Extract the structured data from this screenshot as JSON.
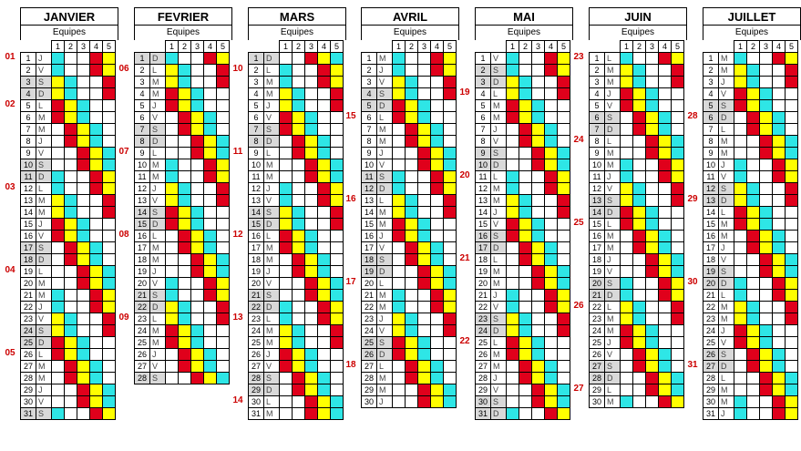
{
  "header_label": "Equipes",
  "team_numbers": [
    "1",
    "2",
    "3",
    "4",
    "5"
  ],
  "colors": {
    "cyan": "#2ee6e6",
    "yellow": "#ffff00",
    "red": "#e0001b",
    "weekend": "#d9d9d9"
  },
  "months": [
    {
      "name": "JANVIER",
      "days": "JVSDLMMJVSDLMMJVSDLMMJVSDLMMJVS",
      "start": "2J"
    },
    {
      "name": "FEVRIER",
      "days": "DLMMJVSDLMMJVSDLMMJVSDLMMJVS",
      "start": ""
    },
    {
      "name": "MARS",
      "days": "DLMMJVSDLMMJVSDLMMJVSDLMMJVSDLM",
      "start": ""
    },
    {
      "name": "AVRIL",
      "days": "MJVSDLMMJVSDLMMJVSDLMMJVSDLMMJ",
      "start": ""
    },
    {
      "name": "MAI",
      "days": "VSDLMMJVSDLMMJVSDLMMJVSDLMMJVSD",
      "start": ""
    },
    {
      "name": "JUIN",
      "days": "LMMJVSDLMMJVSDLMMJVSDLMMJVSDLM",
      "start": ""
    },
    {
      "name": "JUILLET",
      "days": "MMJVSDLMMJVSDLMMJVSDLMMJVSDLMMJ",
      "start": ""
    }
  ],
  "week_labels": [
    {
      "m": 0,
      "d": 1,
      "t": "01"
    },
    {
      "m": 0,
      "d": 5,
      "t": "02"
    },
    {
      "m": 0,
      "d": 12,
      "t": "03"
    },
    {
      "m": 0,
      "d": 19,
      "t": "04"
    },
    {
      "m": 0,
      "d": 26,
      "t": "05"
    },
    {
      "m": 1,
      "d": 2,
      "t": "06"
    },
    {
      "m": 1,
      "d": 9,
      "t": "07"
    },
    {
      "m": 1,
      "d": 16,
      "t": "08"
    },
    {
      "m": 1,
      "d": 23,
      "t": "09"
    },
    {
      "m": 2,
      "d": 2,
      "t": "10"
    },
    {
      "m": 2,
      "d": 9,
      "t": "11"
    },
    {
      "m": 2,
      "d": 16,
      "t": "12"
    },
    {
      "m": 2,
      "d": 23,
      "t": "13"
    },
    {
      "m": 2,
      "d": 30,
      "t": "14"
    },
    {
      "m": 3,
      "d": 6,
      "t": "15"
    },
    {
      "m": 3,
      "d": 13,
      "t": "16"
    },
    {
      "m": 3,
      "d": 20,
      "t": "17"
    },
    {
      "m": 3,
      "d": 27,
      "t": "18"
    },
    {
      "m": 4,
      "d": 4,
      "t": "19"
    },
    {
      "m": 4,
      "d": 11,
      "t": "20"
    },
    {
      "m": 4,
      "d": 18,
      "t": "21"
    },
    {
      "m": 4,
      "d": 25,
      "t": "22"
    },
    {
      "m": 5,
      "d": 1,
      "t": "23"
    },
    {
      "m": 5,
      "d": 8,
      "t": "24"
    },
    {
      "m": 5,
      "d": 15,
      "t": "25"
    },
    {
      "m": 5,
      "d": 22,
      "t": "26"
    },
    {
      "m": 5,
      "d": 29,
      "t": "27"
    },
    {
      "m": 6,
      "d": 6,
      "t": "28"
    },
    {
      "m": 6,
      "d": 13,
      "t": "29"
    },
    {
      "m": 6,
      "d": 20,
      "t": "30"
    },
    {
      "m": 6,
      "d": 27,
      "t": "31"
    }
  ]
}
